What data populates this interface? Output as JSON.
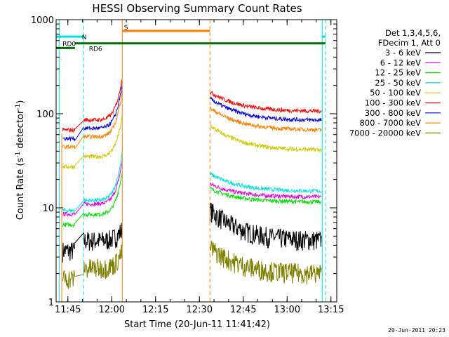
{
  "chart_data": {
    "type": "line",
    "title": "HESSI Observing Summary Count Rates",
    "xlabel": "Start Time (20-Jun-11 11:41:42)",
    "ylabel_prefix": "Count Rate (s",
    "ylabel_sup1": "-1",
    "ylabel_mid": " detector",
    "ylabel_sup2": "-1",
    "ylabel_suffix": ")",
    "y_scale": "log",
    "ylim": [
      1,
      1000
    ],
    "xlim_minutes": [
      11.683,
      13.283
    ],
    "x_ticks": [
      {
        "t": 11.75,
        "label": "11:45"
      },
      {
        "t": 12.0,
        "label": "12:00"
      },
      {
        "t": 12.25,
        "label": "12:15"
      },
      {
        "t": 12.5,
        "label": "12:30"
      },
      {
        "t": 12.75,
        "label": "12:45"
      },
      {
        "t": 13.0,
        "label": "13:00"
      },
      {
        "t": 13.25,
        "label": "13:15"
      }
    ],
    "y_ticks": [
      {
        "v": 1,
        "label": "1"
      },
      {
        "v": 10,
        "label": "10"
      },
      {
        "v": 100,
        "label": "100"
      },
      {
        "v": 1000,
        "label": "1000"
      }
    ],
    "legend_header": [
      "Det 1,3,4,5,6,",
      "FDecim 1, Att 0"
    ],
    "legend_placement": "right",
    "series": [
      {
        "name": "3 - 6 keV",
        "color": "#000000",
        "pre": 4.5,
        "rise_end": 6,
        "post_start": 9.5,
        "post_end": 4.5
      },
      {
        "name": "6 - 12 keV",
        "color": "#e000e0",
        "pre": 11,
        "rise_end": 32,
        "post_start": 18,
        "post_end": 13
      },
      {
        "name": "12 - 25 keV",
        "color": "#00e000",
        "pre": 8.5,
        "rise_end": 25,
        "post_start": 16,
        "post_end": 11.5
      },
      {
        "name": "25 - 50 keV",
        "color": "#00e0e0",
        "pre": 12,
        "rise_end": 40,
        "post_start": 23,
        "post_end": 15
      },
      {
        "name": "50 - 100 keV",
        "color": "#d0c800",
        "pre": 35,
        "rise_end": 95,
        "post_start": 75,
        "post_end": 41
      },
      {
        "name": "100 - 300 keV",
        "color": "#ff0000",
        "pre": 86,
        "rise_end": 250,
        "post_start": 170,
        "post_end": 106
      },
      {
        "name": "300 - 800 keV",
        "color": "#0000e0",
        "pre": 70,
        "rise_end": 210,
        "post_start": 145,
        "post_end": 85
      },
      {
        "name": "800 - 7000 keV",
        "color": "#ff8000",
        "pre": 57,
        "rise_end": 180,
        "post_start": 115,
        "post_end": 67
      },
      {
        "name": "7000 - 20000 keV",
        "color": "#808000",
        "pre": 2.3,
        "rise_end": 3.5,
        "post_start": 3.8,
        "post_end": 2.0
      }
    ],
    "annotations": [
      {
        "label": "N",
        "kind": "saa",
        "color": "#00e0e0",
        "t": 11.83,
        "y": 660
      },
      {
        "label": "RD0",
        "kind": "decimation",
        "color": "#000000",
        "t": 11.72,
        "y": 560
      },
      {
        "label": "RD6",
        "kind": "decimation",
        "color": "#000000",
        "t": 11.87,
        "y": 500
      },
      {
        "label": "S",
        "kind": "saa",
        "color": "#ff8000",
        "t": 12.07,
        "y": 840
      }
    ]
  },
  "timestamp": "20-Jun-2011 20:23"
}
